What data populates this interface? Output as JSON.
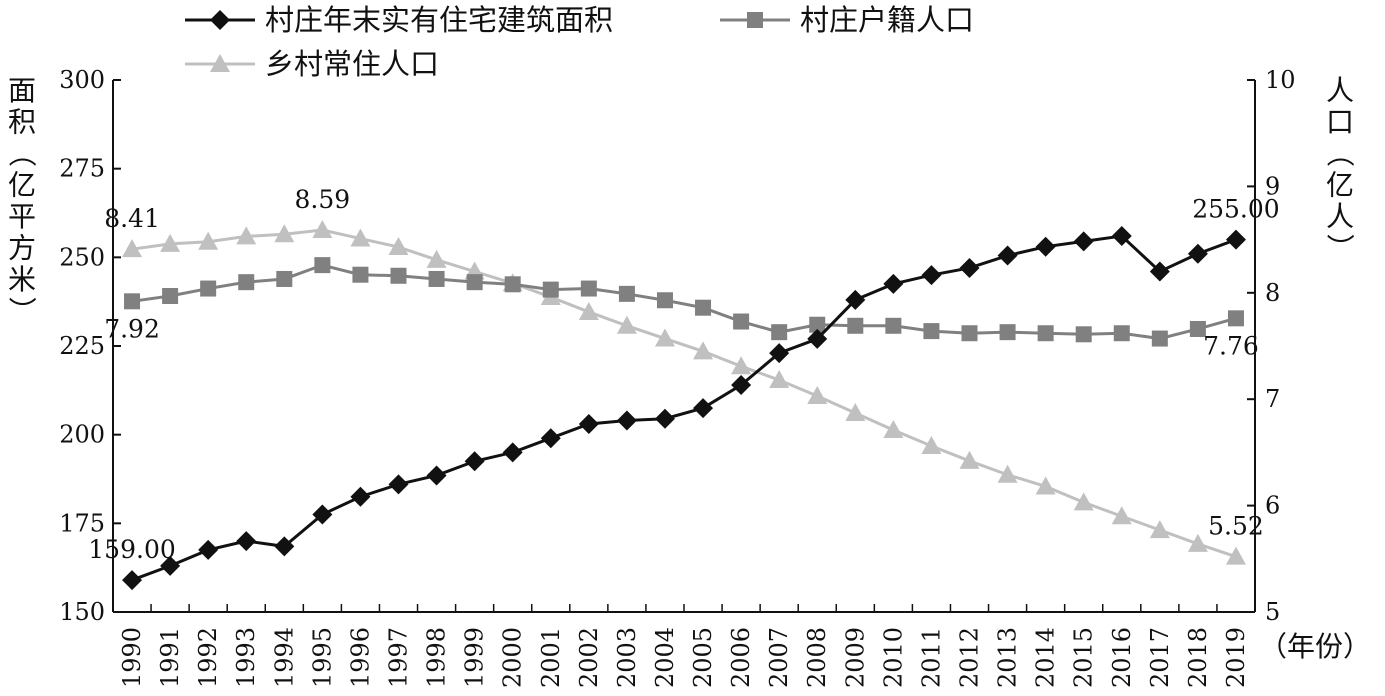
{
  "chart_data": {
    "type": "line",
    "x": [
      1990,
      1991,
      1992,
      1993,
      1994,
      1995,
      1996,
      1997,
      1998,
      1999,
      2000,
      2001,
      2002,
      2003,
      2004,
      2005,
      2006,
      2007,
      2008,
      2009,
      2010,
      2011,
      2012,
      2013,
      2014,
      2015,
      2016,
      2017,
      2018,
      2019
    ],
    "x_tick_labels": [
      "1990",
      "1991",
      "1992",
      "1993",
      "1994",
      "1995",
      "1996",
      "1997",
      "1998",
      "1999",
      "2000",
      "2001",
      "2002",
      "2003",
      "2004",
      "2005",
      "2006",
      "2007",
      "2008",
      "2009",
      "2010",
      "2011",
      "2012",
      "2013",
      "2014",
      "2015",
      "2016",
      "2017",
      "2018",
      "2019"
    ],
    "xlabel": "（年份）",
    "y_left": {
      "label": "面积（亿平方米）",
      "ylim": [
        150,
        300
      ],
      "ticks": [
        "150",
        "175",
        "200",
        "225",
        "250",
        "275",
        "300"
      ]
    },
    "y_right": {
      "label": "人口（亿人）",
      "ylim": [
        5,
        10
      ],
      "ticks": [
        "5",
        "6",
        "7",
        "8",
        "9",
        "10"
      ]
    },
    "series": [
      {
        "name": "村庄年末实有住宅建筑面积",
        "axis": "left",
        "color": "#111111",
        "marker": "diamond",
        "values": [
          159.0,
          163.0,
          167.5,
          170.0,
          168.5,
          177.5,
          182.5,
          186.0,
          188.5,
          192.5,
          195.0,
          199.0,
          203.0,
          204.0,
          204.5,
          207.5,
          214.0,
          223.0,
          227.0,
          238.0,
          242.5,
          245.0,
          247.0,
          250.5,
          253.0,
          254.5,
          256.0,
          246.0,
          251.0,
          255.0
        ]
      },
      {
        "name": "村庄户籍人口",
        "axis": "right",
        "color": "#808080",
        "marker": "square",
        "values": [
          7.92,
          7.97,
          8.04,
          8.1,
          8.13,
          8.26,
          8.17,
          8.16,
          8.13,
          8.1,
          8.08,
          8.03,
          8.04,
          7.99,
          7.93,
          7.86,
          7.73,
          7.63,
          7.7,
          7.69,
          7.69,
          7.64,
          7.62,
          7.63,
          7.62,
          7.61,
          7.62,
          7.57,
          7.66,
          7.76
        ]
      },
      {
        "name": "乡村常住人口",
        "axis": "right",
        "color": "#c0c0c0",
        "marker": "triangle",
        "values": [
          8.41,
          8.46,
          8.48,
          8.53,
          8.55,
          8.59,
          8.51,
          8.43,
          8.31,
          8.2,
          8.09,
          7.96,
          7.82,
          7.69,
          7.57,
          7.45,
          7.31,
          7.18,
          7.03,
          6.87,
          6.71,
          6.56,
          6.42,
          6.29,
          6.18,
          6.03,
          5.9,
          5.77,
          5.64,
          5.52
        ]
      }
    ],
    "annotations": [
      {
        "text": "8.41",
        "series": 2,
        "index": 0,
        "pos": "above"
      },
      {
        "text": "8.59",
        "series": 2,
        "index": 5,
        "pos": "above"
      },
      {
        "text": "7.92",
        "series": 1,
        "index": 0,
        "pos": "below"
      },
      {
        "text": "7.76",
        "series": 1,
        "index": 29,
        "pos": "below-left"
      },
      {
        "text": "159.00",
        "series": 0,
        "index": 0,
        "pos": "above"
      },
      {
        "text": "255.00",
        "series": 0,
        "index": 29,
        "pos": "above"
      },
      {
        "text": "5.52",
        "series": 2,
        "index": 29,
        "pos": "above"
      }
    ],
    "legend": "top",
    "grid": false
  }
}
